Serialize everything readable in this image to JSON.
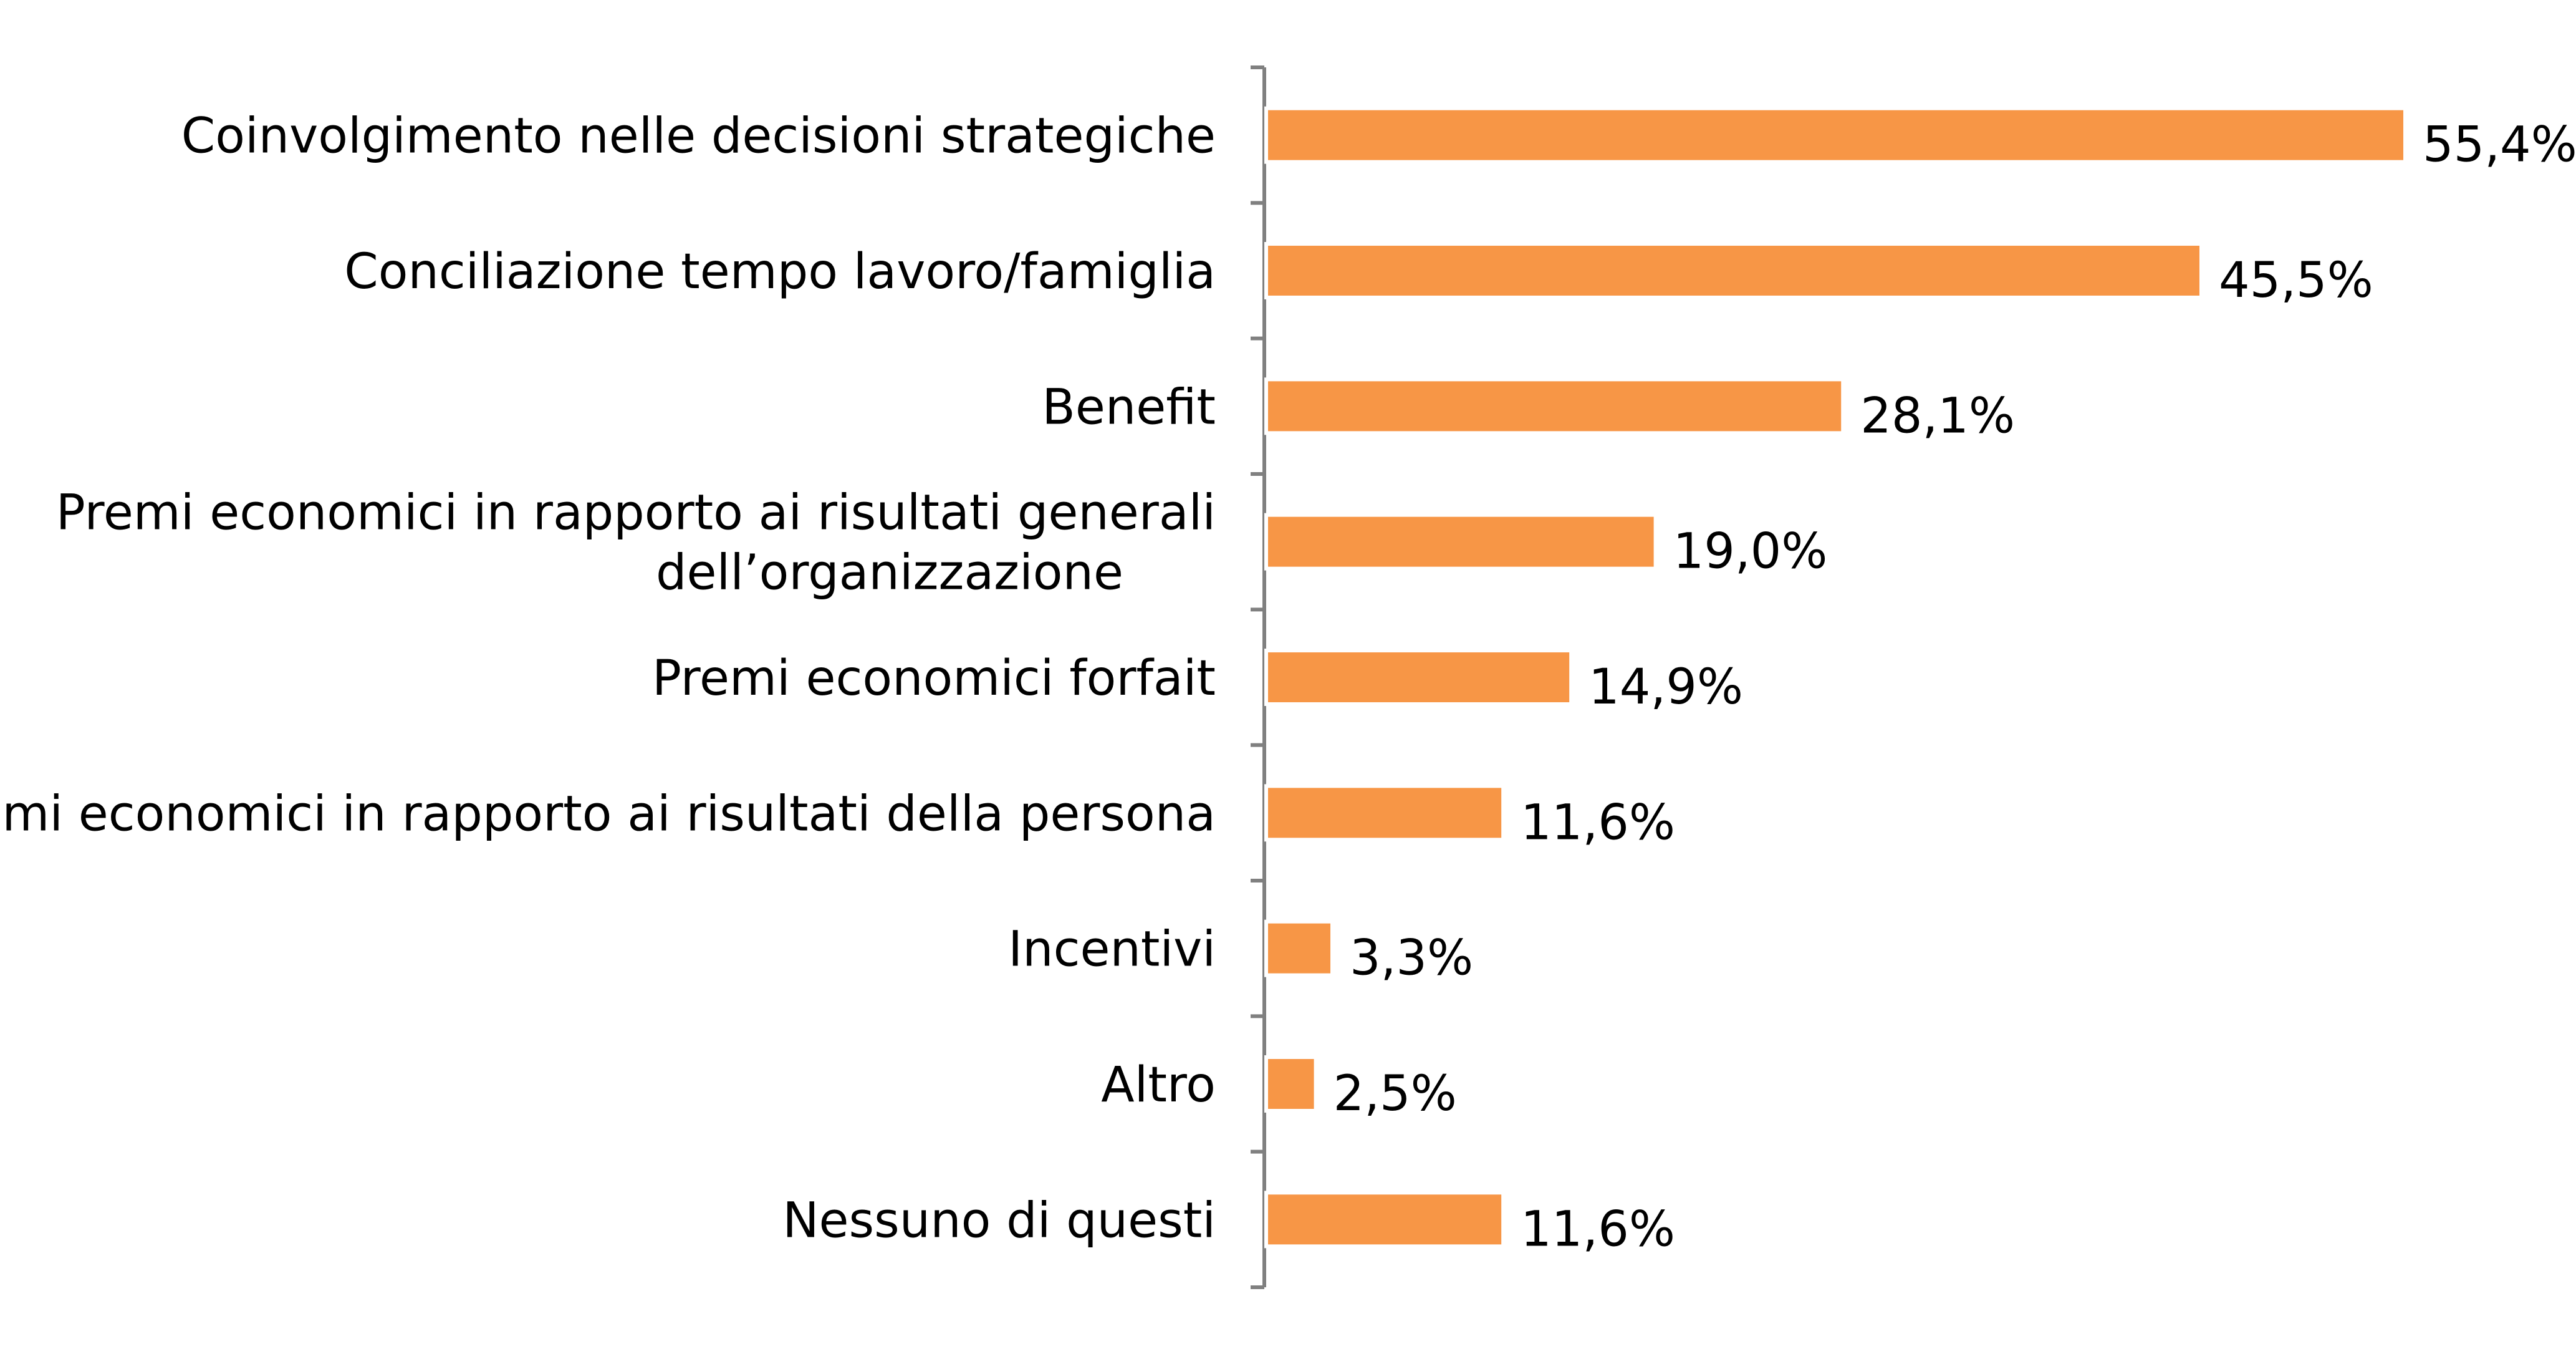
{
  "chart_data": {
    "type": "bar",
    "orientation": "horizontal",
    "categories": [
      "Coinvolgimento nelle decisioni strategiche",
      "Conciliazione tempo lavoro/famiglia",
      "Benefit",
      "Premi economici in rapporto ai risultati generali dell’organizzazione",
      "Premi economici forfait",
      "Premi economici in rapporto ai risultati della persona",
      "Incentivi",
      "Altro",
      "Nessuno di questi"
    ],
    "category_lines": [
      [
        "Coinvolgimento nelle decisioni strategiche"
      ],
      [
        "Conciliazione tempo lavoro/famiglia"
      ],
      [
        "Benefit"
      ],
      [
        "Premi economici in rapporto ai risultati generali",
        "dell’organizzazione"
      ],
      [
        "Premi economici forfait"
      ],
      [
        "Premi economici in rapporto ai risultati della persona"
      ],
      [
        "Incentivi"
      ],
      [
        "Altro"
      ],
      [
        "Nessuno di questi"
      ]
    ],
    "values": [
      55.4,
      45.5,
      28.1,
      19.0,
      14.9,
      11.6,
      3.3,
      2.5,
      11.6
    ],
    "value_labels": [
      "55,4%",
      "45,5%",
      "28,1%",
      "19,0%",
      "14,9%",
      "11,6%",
      "3,3%",
      "2,5%",
      "11,6%"
    ],
    "unit": "%",
    "title": "",
    "xlabel": "",
    "ylabel": "",
    "xlim": [
      0,
      55.4
    ],
    "grid": false,
    "legend": "none",
    "colors": {
      "bar": "#F79646",
      "bar_outline": "#FFFFFF",
      "axis": "#808080",
      "text": "#000000"
    }
  }
}
